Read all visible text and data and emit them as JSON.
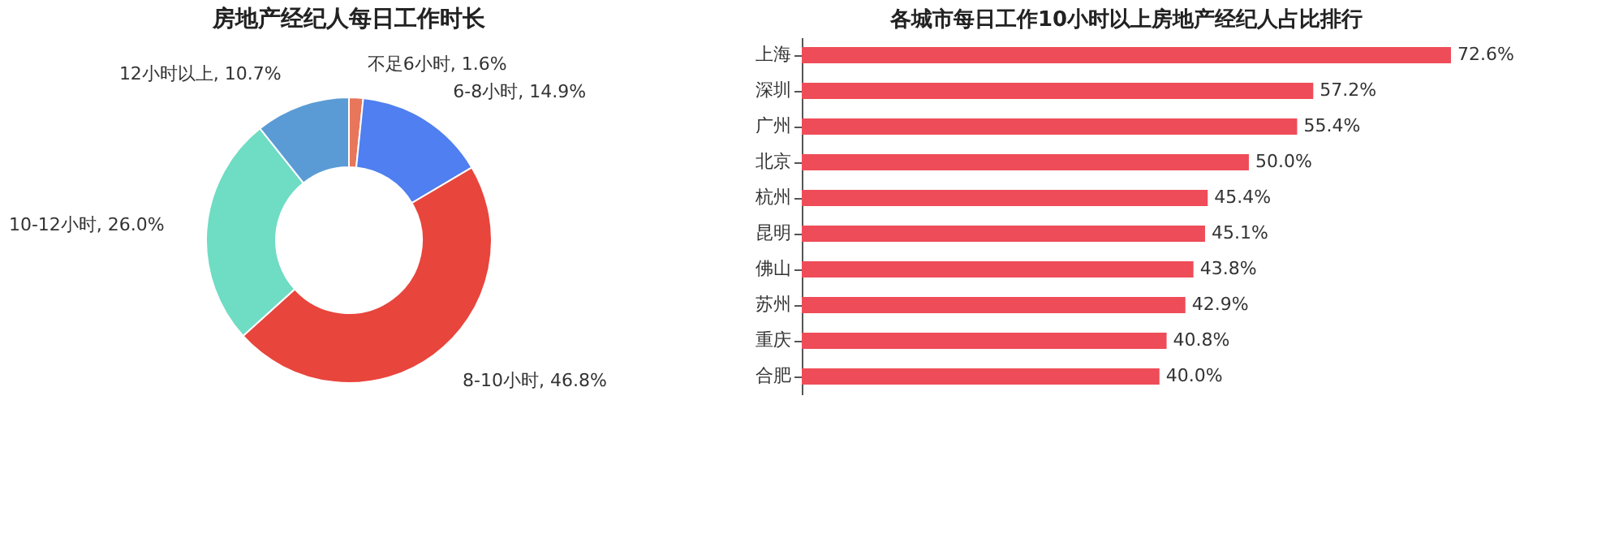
{
  "chart_data": [
    {
      "type": "donut",
      "title": "房地产经纪人每日工作时长",
      "categories": [
        "不足6小时",
        "6-8小时",
        "8-10小时",
        "10-12小时",
        "12小时以上"
      ],
      "values": [
        1.6,
        14.9,
        46.8,
        26.0,
        10.7
      ],
      "colors": [
        "#e8765a",
        "#4f7ff0",
        "#e8453c",
        "#6fdcc4",
        "#5b9bd5"
      ],
      "value_labels": [
        "1.6%",
        "14.9%",
        "46.8%",
        "26.0%",
        "10.7%"
      ],
      "legend": false
    },
    {
      "type": "bar",
      "orientation": "horizontal",
      "title": "各城市每日工作10小时以上房地产经纪人占比排行",
      "categories": [
        "上海",
        "深圳",
        "广州",
        "北京",
        "杭州",
        "昆明",
        "佛山",
        "苏州",
        "重庆",
        "合肥"
      ],
      "values": [
        72.6,
        57.2,
        55.4,
        50.0,
        45.4,
        45.1,
        43.8,
        42.9,
        40.8,
        40.0
      ],
      "color": "#ee4c58",
      "value_labels": [
        "72.6%",
        "57.2%",
        "55.4%",
        "50.0%",
        "45.4%",
        "45.1%",
        "43.8%",
        "42.9%",
        "40.8%",
        "40.0%"
      ],
      "legend": false
    }
  ]
}
